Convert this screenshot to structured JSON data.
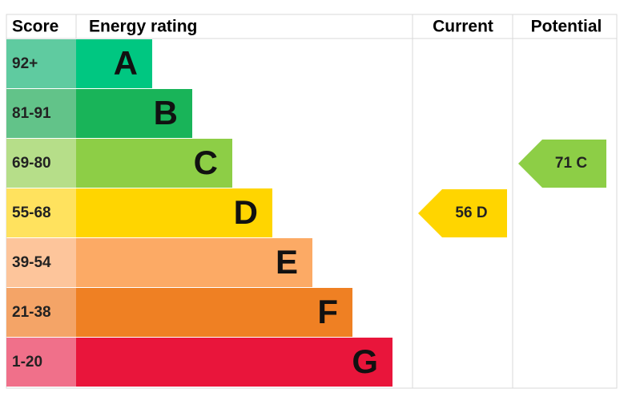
{
  "header": {
    "score": "Score",
    "energy_rating": "Energy rating",
    "current": "Current",
    "potential": "Potential"
  },
  "bands": [
    {
      "score": "92+",
      "letter": "A",
      "color": "#00c781",
      "score_color": "#5fcba0"
    },
    {
      "score": "81-91",
      "letter": "B",
      "color": "#19b459",
      "score_color": "#62c389"
    },
    {
      "score": "69-80",
      "letter": "C",
      "color": "#8dce46",
      "score_color": "#b6de89"
    },
    {
      "score": "55-68",
      "letter": "D",
      "color": "#ffd500",
      "score_color": "#ffe25e"
    },
    {
      "score": "39-54",
      "letter": "E",
      "color": "#fcaa65",
      "score_color": "#fdc59b"
    },
    {
      "score": "21-38",
      "letter": "F",
      "color": "#ef8023",
      "score_color": "#f4a467"
    },
    {
      "score": "1-20",
      "letter": "G",
      "color": "#e9153b",
      "score_color": "#f0708a"
    }
  ],
  "current": "56 D",
  "potential": "71 C"
}
